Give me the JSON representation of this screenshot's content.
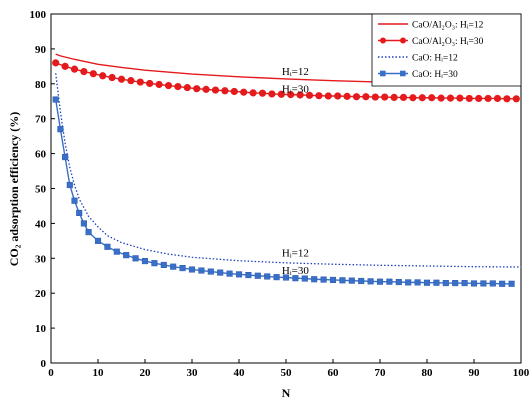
{
  "chart_data": {
    "type": "line",
    "title": "",
    "xlabel": "N",
    "ylabel": "CO₂ adsorption efficiency (%)",
    "xlim": [
      0,
      100
    ],
    "ylim": [
      0,
      100
    ],
    "xticks": [
      0,
      10,
      20,
      30,
      40,
      50,
      60,
      70,
      80,
      90,
      100
    ],
    "yticks": [
      0,
      10,
      20,
      30,
      40,
      50,
      60,
      70,
      80,
      90,
      100
    ],
    "grid": false,
    "legend_position": "top-right",
    "series": [
      {
        "name": "CaO/Al₂O₃: Hᵢ=12",
        "color": "#e41a1c",
        "style": "solid",
        "marker": "none",
        "x": [
          1,
          2,
          5,
          10,
          15,
          20,
          30,
          40,
          50,
          60,
          70,
          80,
          90,
          100
        ],
        "values": [
          88.5,
          88.0,
          87.0,
          85.6,
          84.7,
          83.9,
          82.8,
          82.0,
          81.4,
          80.9,
          80.5,
          80.2,
          80.0,
          79.8
        ]
      },
      {
        "name": "CaO/Al₂O₃: Hᵢ=30",
        "color": "#e41a1c",
        "style": "solid",
        "marker": "circle",
        "x": [
          1,
          3,
          5,
          7,
          9,
          11,
          13,
          15,
          17,
          19,
          21,
          23,
          25,
          27,
          29,
          31,
          33,
          35,
          37,
          39,
          41,
          43,
          45,
          47,
          49,
          51,
          53,
          55,
          57,
          59,
          61,
          63,
          65,
          67,
          69,
          71,
          73,
          75,
          77,
          79,
          81,
          83,
          85,
          87,
          89,
          91,
          93,
          95,
          97,
          99
        ],
        "values": [
          86.0,
          85.0,
          84.2,
          83.5,
          82.9,
          82.3,
          81.8,
          81.3,
          80.9,
          80.5,
          80.1,
          79.8,
          79.5,
          79.2,
          78.9,
          78.6,
          78.4,
          78.2,
          78.0,
          77.8,
          77.6,
          77.4,
          77.3,
          77.1,
          77.0,
          76.9,
          76.8,
          76.7,
          76.6,
          76.5,
          76.5,
          76.4,
          76.3,
          76.3,
          76.2,
          76.2,
          76.1,
          76.1,
          76.0,
          76.0,
          76.0,
          75.9,
          75.9,
          75.9,
          75.8,
          75.8,
          75.8,
          75.8,
          75.7,
          75.7
        ]
      },
      {
        "name": "CaO: Hᵢ=12",
        "color": "#1f3fbf",
        "style": "dotted",
        "marker": "none",
        "x": [
          1,
          2,
          3,
          4,
          5,
          6,
          8,
          10,
          12,
          15,
          20,
          25,
          30,
          40,
          50,
          60,
          70,
          80,
          90,
          100
        ],
        "values": [
          83.0,
          72.0,
          63.0,
          56.0,
          51.0,
          47.0,
          42.0,
          39.0,
          36.5,
          34.5,
          32.5,
          31.2,
          30.3,
          29.3,
          28.7,
          28.3,
          28.0,
          27.8,
          27.6,
          27.5
        ]
      },
      {
        "name": "CaO: Hᵢ=30",
        "color": "#3a6fc8",
        "style": "solid",
        "marker": "square",
        "x": [
          1,
          2,
          3,
          4,
          5,
          6,
          7,
          8,
          10,
          12,
          14,
          16,
          18,
          20,
          22,
          24,
          26,
          28,
          30,
          32,
          34,
          36,
          38,
          40,
          42,
          44,
          46,
          48,
          50,
          52,
          54,
          56,
          58,
          60,
          62,
          64,
          66,
          68,
          70,
          72,
          74,
          76,
          78,
          80,
          82,
          84,
          86,
          88,
          90,
          92,
          94,
          96,
          98
        ],
        "values": [
          75.5,
          67.0,
          59.0,
          51.0,
          46.5,
          43.0,
          40.0,
          37.5,
          35.0,
          33.3,
          31.9,
          30.9,
          30.0,
          29.2,
          28.6,
          28.1,
          27.6,
          27.2,
          26.8,
          26.5,
          26.2,
          25.9,
          25.6,
          25.4,
          25.2,
          25.0,
          24.8,
          24.6,
          24.5,
          24.3,
          24.2,
          24.0,
          23.9,
          23.8,
          23.7,
          23.6,
          23.5,
          23.4,
          23.3,
          23.3,
          23.2,
          23.1,
          23.1,
          23.0,
          23.0,
          22.9,
          22.9,
          22.9,
          22.8,
          22.8,
          22.8,
          22.7,
          22.7
        ]
      }
    ],
    "annotations": [
      {
        "text": "Hᵢ=12",
        "x": 52,
        "y": 82.5
      },
      {
        "text": "Hᵢ=30",
        "x": 52,
        "y": 77.5
      },
      {
        "text": "Hᵢ=12",
        "x": 52,
        "y": 30.5
      },
      {
        "text": "Hᵢ=30",
        "x": 52,
        "y": 25.5
      }
    ]
  }
}
